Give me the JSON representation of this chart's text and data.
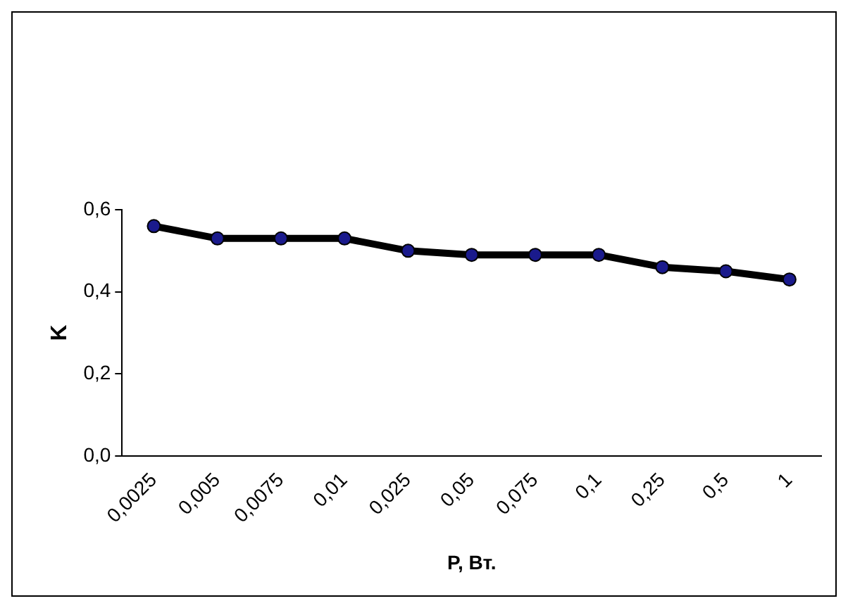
{
  "chart_data": {
    "type": "line",
    "xlabel": "P, Вт.",
    "ylabel": "K",
    "categories": [
      "0,0025",
      "0,005",
      "0,0075",
      "0,01",
      "0,025",
      "0,05",
      "0,075",
      "0,1",
      "0,25",
      "0,5",
      "1"
    ],
    "series": [
      {
        "color": "#000000",
        "values": [
          0.56,
          0.53,
          0.53,
          0.53,
          0.5,
          0.49,
          0.49,
          0.49,
          0.46,
          0.45,
          0.43
        ]
      }
    ],
    "ylim": [
      0,
      0.6
    ],
    "yticks": [
      {
        "value": 0,
        "label": "0,0"
      },
      {
        "value": 0.2,
        "label": "0,2"
      },
      {
        "value": 0.4,
        "label": "0,4"
      },
      {
        "value": 0.6,
        "label": "0,6"
      }
    ],
    "grid": false,
    "legend": false,
    "marker": "circle",
    "line_style": "solid"
  }
}
